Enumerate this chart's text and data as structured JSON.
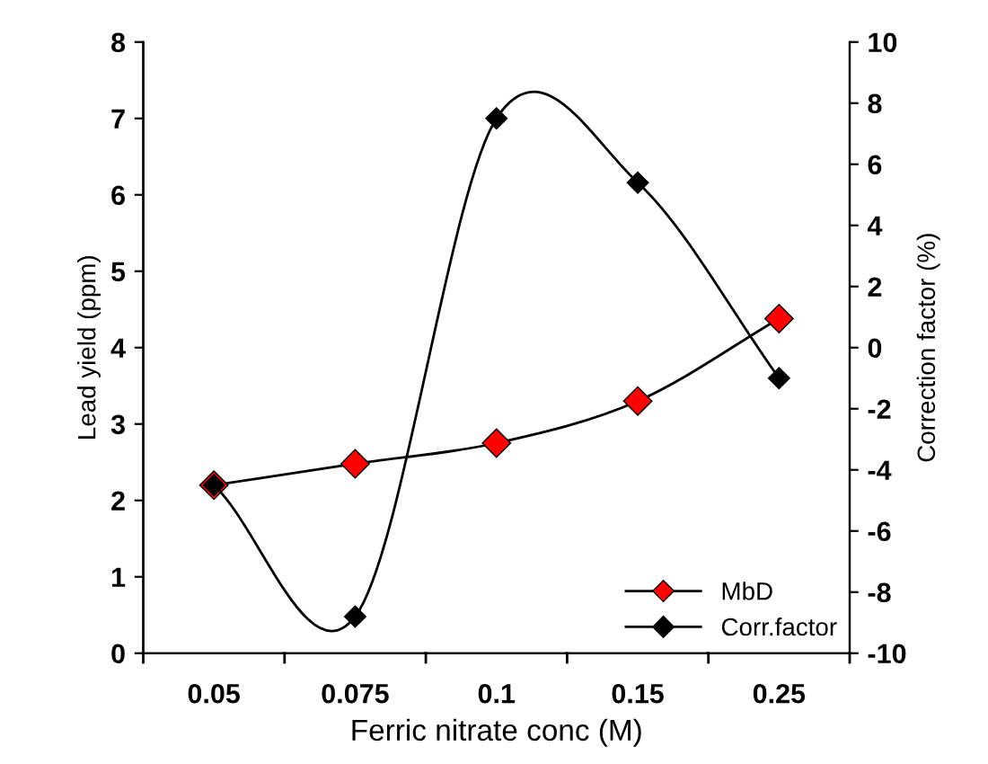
{
  "chart_data": {
    "type": "line",
    "xlabel": "Ferric nitrate conc (M)",
    "ylabel": "Lead yield (ppm)",
    "y2label": "Correction factor (%)",
    "categories": [
      "0.05",
      "0.075",
      "0.1",
      "0.15",
      "0.25"
    ],
    "series": [
      {
        "name": "MbD",
        "color": "#ff0000",
        "values": [
          2.2,
          2.48,
          2.75,
          3.3,
          4.38
        ]
      },
      {
        "name": "Corr.factor",
        "color": "#000000",
        "axis": "y2",
        "values": [
          -4.5,
          -8.8,
          7.5,
          5.4,
          -1.0
        ]
      }
    ],
    "ylim": [
      0,
      8
    ],
    "yticks": [
      0,
      1,
      2,
      3,
      4,
      5,
      6,
      7,
      8
    ],
    "y2lim": [
      -10,
      10
    ],
    "y2ticks": [
      -10,
      -8,
      -6,
      -4,
      -2,
      0,
      2,
      4,
      6,
      8,
      10
    ],
    "marker": "diamond",
    "legend": "bottom right",
    "grid": false
  }
}
